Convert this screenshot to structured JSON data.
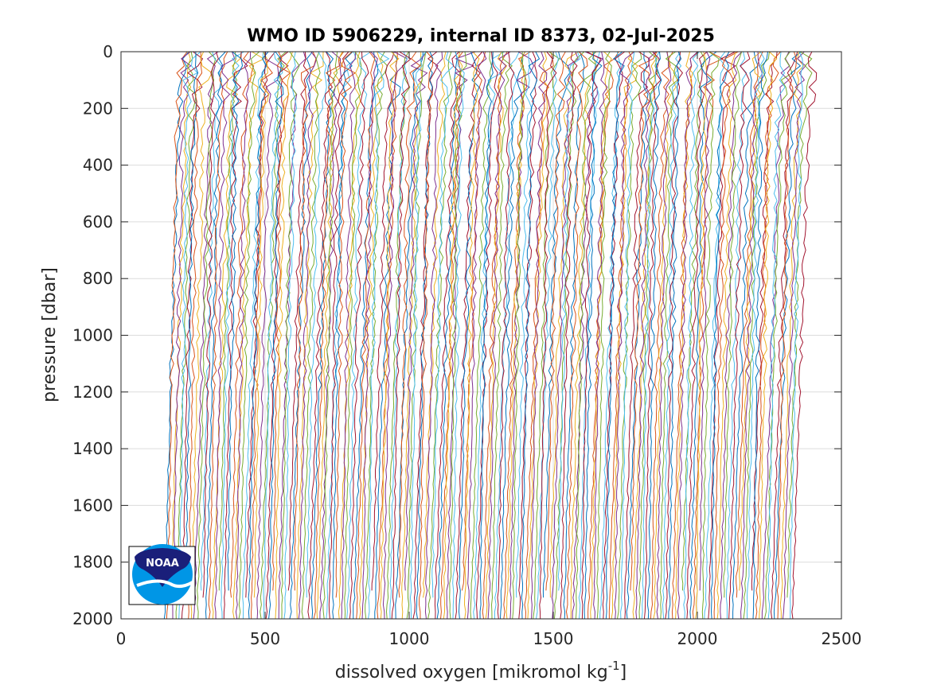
{
  "chart_data": {
    "type": "line",
    "title": "WMO ID 5906229, internal ID 8373, 02-Jul-2025",
    "xlabel": "dissolved oxygen [mikromol kg",
    "xlabel_superscript": "-1",
    "xlabel_suffix": "]",
    "ylabel": "pressure [dbar]",
    "xlim": [
      0,
      2500
    ],
    "ylim": [
      0,
      2000
    ],
    "y_reversed": true,
    "x_ticks": [
      0,
      500,
      1000,
      1500,
      2000,
      2500
    ],
    "y_ticks": [
      0,
      200,
      400,
      600,
      800,
      1000,
      1200,
      1400,
      1600,
      1800,
      2000
    ],
    "grid": true,
    "profile_count": 210,
    "offset_start_approx": 150,
    "offset_end_approx": 2330,
    "line_colors": [
      "#0072bd",
      "#d95319",
      "#edb120",
      "#7e2f8e",
      "#77ac30",
      "#4dbeee",
      "#a2142f"
    ]
  },
  "logo": {
    "name": "noaa-logo",
    "text": "NOAA",
    "colors": {
      "dark": "#1a1f7a",
      "light": "#0096e6"
    }
  }
}
